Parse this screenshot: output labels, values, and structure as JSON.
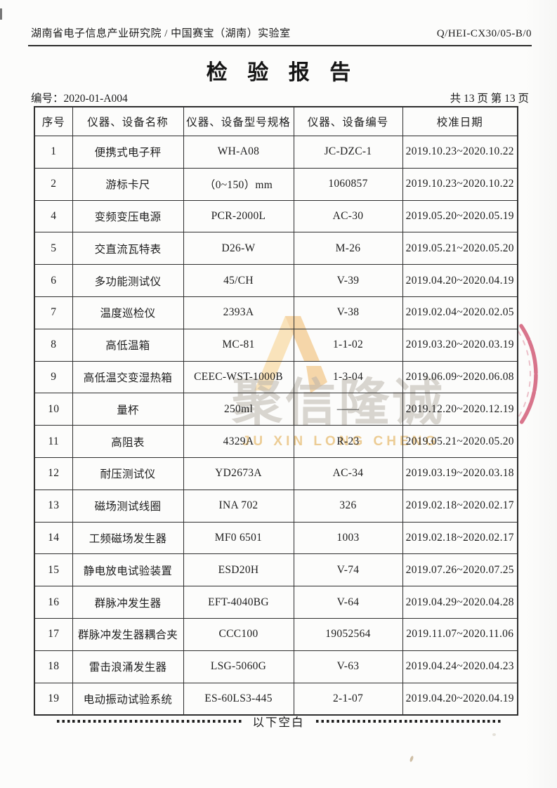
{
  "document": {
    "org_line": "湖南省电子信息产业研究院 / 中国赛宝（湖南）实验室",
    "doc_code": "Q/HEI-CX30/05-B/0",
    "title": "检验报告",
    "report_no": "编号：2020-01-A004",
    "page_info": "共 13 页 第 13 页",
    "end_note": "以下空白"
  },
  "watermark": {
    "cn": "聚信隆诚",
    "en": "JU XIN LONG CHENG"
  },
  "colors": {
    "seal": "#cf5370",
    "watermark_cn": "rgba(186,180,171,0.55)",
    "watermark_en": "rgba(228,178,92,0.65)",
    "logo_gold_light": "#f6c977",
    "logo_gold": "#efae52"
  },
  "table": {
    "headers": [
      "序号",
      "仪器、设备名称",
      "仪器、设备型号规格",
      "仪器、设备编号",
      "校准日期"
    ],
    "rows": [
      [
        "1",
        "便携式电子秤",
        "WH-A08",
        "JC-DZC-1",
        "2019.10.23~2020.10.22"
      ],
      [
        "2",
        "游标卡尺",
        "（0~150）mm",
        "1060857",
        "2019.10.23~2020.10.22"
      ],
      [
        "4",
        "变频变压电源",
        "PCR-2000L",
        "AC-30",
        "2019.05.20~2020.05.19"
      ],
      [
        "5",
        "交直流瓦特表",
        "D26-W",
        "M-26",
        "2019.05.21~2020.05.20"
      ],
      [
        "6",
        "多功能测试仪",
        "45/CH",
        "V-39",
        "2019.04.20~2020.04.19"
      ],
      [
        "7",
        "温度巡检仪",
        "2393A",
        "V-38",
        "2019.02.04~2020.02.05"
      ],
      [
        "8",
        "高低温箱",
        "MC-81",
        "1-1-02",
        "2019.03.20~2020.03.19"
      ],
      [
        "9",
        "高低温交变湿热箱",
        "CEEC-WST-1000B",
        "1-3-04",
        "2019.06.09~2020.06.08"
      ],
      [
        "10",
        "量杯",
        "250ml",
        "——",
        "2019.12.20~2020.12.19"
      ],
      [
        "11",
        "高阻表",
        "4329A",
        "R-23",
        "2019.05.21~2020.05.20"
      ],
      [
        "12",
        "耐压测试仪",
        "YD2673A",
        "AC-34",
        "2019.03.19~2020.03.18"
      ],
      [
        "13",
        "磁场测试线圈",
        "INA 702",
        "326",
        "2019.02.18~2020.02.17"
      ],
      [
        "14",
        "工频磁场发生器",
        "MF0 6501",
        "1003",
        "2019.02.18~2020.02.17"
      ],
      [
        "15",
        "静电放电试验装置",
        "ESD20H",
        "V-74",
        "2019.07.26~2020.07.25"
      ],
      [
        "16",
        "群脉冲发生器",
        "EFT-4040BG",
        "V-64",
        "2019.04.29~2020.04.28"
      ],
      [
        "17",
        "群脉冲发生器耦合夹",
        "CCC100",
        "19052564",
        "2019.11.07~2020.11.06"
      ],
      [
        "18",
        "雷击浪涌发生器",
        "LSG-5060G",
        "V-63",
        "2019.04.24~2020.04.23"
      ],
      [
        "19",
        "电动振动试验系统",
        "ES-60LS3-445",
        "2-1-07",
        "2019.04.20~2020.04.19"
      ]
    ]
  }
}
